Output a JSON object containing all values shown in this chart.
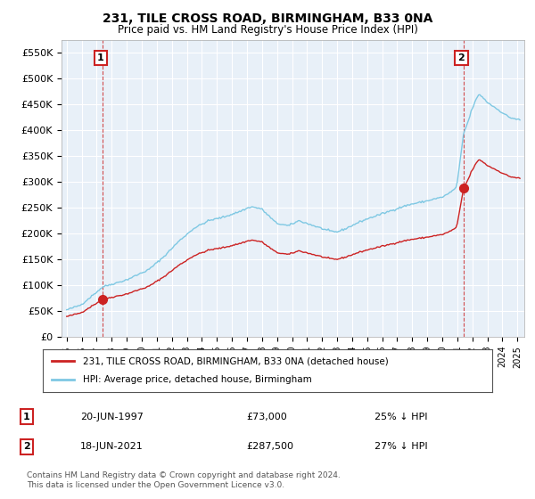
{
  "title": "231, TILE CROSS ROAD, BIRMINGHAM, B33 0NA",
  "subtitle": "Price paid vs. HM Land Registry's House Price Index (HPI)",
  "ylim": [
    0,
    575000
  ],
  "yticks": [
    0,
    50000,
    100000,
    150000,
    200000,
    250000,
    300000,
    350000,
    400000,
    450000,
    500000,
    550000
  ],
  "ytick_labels": [
    "£0",
    "£50K",
    "£100K",
    "£150K",
    "£200K",
    "£250K",
    "£300K",
    "£350K",
    "£400K",
    "£450K",
    "£500K",
    "£550K"
  ],
  "sale1_year": 1997,
  "sale1_month": 6,
  "sale1_price": 73000,
  "sale1_date": "20-JUN-1997",
  "sale1_hpi_text": "25% ↓ HPI",
  "sale2_year": 2021,
  "sale2_month": 6,
  "sale2_price": 287500,
  "sale2_date": "18-JUN-2021",
  "sale2_hpi_text": "27% ↓ HPI",
  "legend_label1": "231, TILE CROSS ROAD, BIRMINGHAM, B33 0NA (detached house)",
  "legend_label2": "HPI: Average price, detached house, Birmingham",
  "footnote": "Contains HM Land Registry data © Crown copyright and database right 2024.\nThis data is licensed under the Open Government Licence v3.0.",
  "hpi_color": "#7ec8e3",
  "price_color": "#cc2222",
  "bg_color": "#ffffff",
  "plot_bg_color": "#e8f0f8",
  "grid_color": "#ffffff",
  "vline_color": "#cc2222"
}
